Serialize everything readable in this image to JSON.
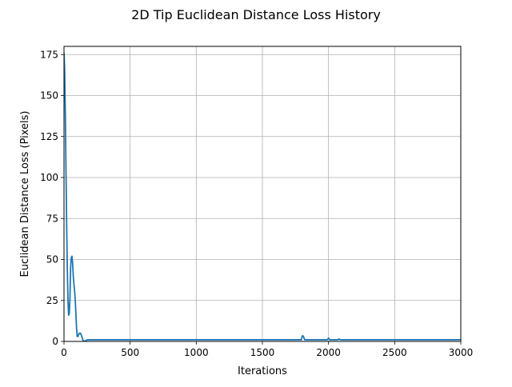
{
  "chart_data": {
    "type": "line",
    "title": "2D Tip Euclidean Distance Loss History",
    "xlabel": "Iterations",
    "ylabel": "Euclidean Distance Loss (Pixels)",
    "xlim": [
      0,
      3000
    ],
    "ylim": [
      0,
      180
    ],
    "xticks": [
      0,
      500,
      1000,
      1500,
      2000,
      2500,
      3000
    ],
    "yticks": [
      0,
      25,
      50,
      75,
      100,
      125,
      150,
      175
    ],
    "grid": true,
    "line_color": "#1f77b4",
    "series": [
      {
        "x": [
          0,
          5,
          10,
          15,
          20,
          25,
          30,
          35,
          40,
          45,
          50,
          55,
          60,
          65,
          70,
          75,
          80,
          85,
          90,
          95,
          100,
          105,
          110,
          115,
          120,
          125,
          130,
          135,
          140,
          145,
          150,
          155,
          160,
          170,
          180,
          190,
          200,
          250,
          300,
          400,
          500,
          750,
          1000,
          1250,
          1500,
          1750,
          1795,
          1800,
          1805,
          1810,
          1815,
          1820,
          1830,
          1900,
          1990,
          2000,
          2005,
          2010,
          2020,
          2070,
          2080,
          2085,
          2090,
          2100,
          2500,
          3000
        ],
        "y": [
          176,
          165,
          140,
          105,
          72,
          45,
          25,
          16,
          17,
          26,
          45,
          51,
          52,
          48,
          40,
          35,
          31,
          25,
          17,
          8,
          3,
          3,
          4,
          5,
          5,
          5,
          4,
          3,
          1.5,
          0.5,
          0.1,
          0.1,
          0.2,
          0.8,
          1,
          1,
          1,
          1,
          1,
          1,
          1,
          1,
          1,
          1,
          1,
          1,
          1,
          3,
          3.5,
          3,
          2,
          1,
          1,
          1,
          1,
          2,
          1.5,
          1,
          1,
          1,
          1.5,
          1.2,
          1,
          1,
          1,
          1
        ]
      }
    ]
  }
}
